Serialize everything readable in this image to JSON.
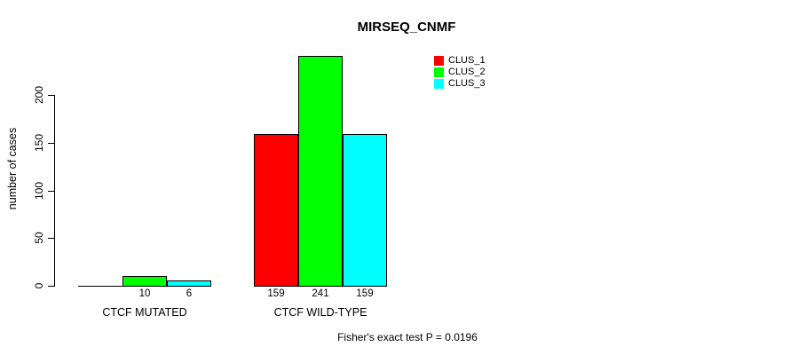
{
  "chart_data": {
    "type": "bar",
    "title": "MIRSEQ_CNMF",
    "xlabel": "",
    "ylabel": "number of cases",
    "categories": [
      "CTCF MUTATED",
      "CTCF WILD-TYPE"
    ],
    "series": [
      {
        "name": "CLUS_1",
        "color": "#FF0000",
        "values": [
          0,
          159
        ]
      },
      {
        "name": "CLUS_2",
        "color": "#00FF00",
        "values": [
          10,
          241
        ]
      },
      {
        "name": "CLUS_3",
        "color": "#00FFFF",
        "values": [
          6,
          159
        ]
      }
    ],
    "bar_labels": [
      [
        "",
        "10",
        "6"
      ],
      [
        "159",
        "241",
        "159"
      ]
    ],
    "yticks": [
      "0",
      "50",
      "100",
      "150",
      "200"
    ],
    "ytick_values": [
      0,
      50,
      100,
      150,
      200
    ],
    "ylim": [
      0,
      241
    ],
    "grid": false,
    "legend_position": "top-right",
    "legend_box": false,
    "annotation": "Fisher's exact test P = 0.0196",
    "axis_color": "#000000",
    "background_color": "#FFFFFF"
  }
}
